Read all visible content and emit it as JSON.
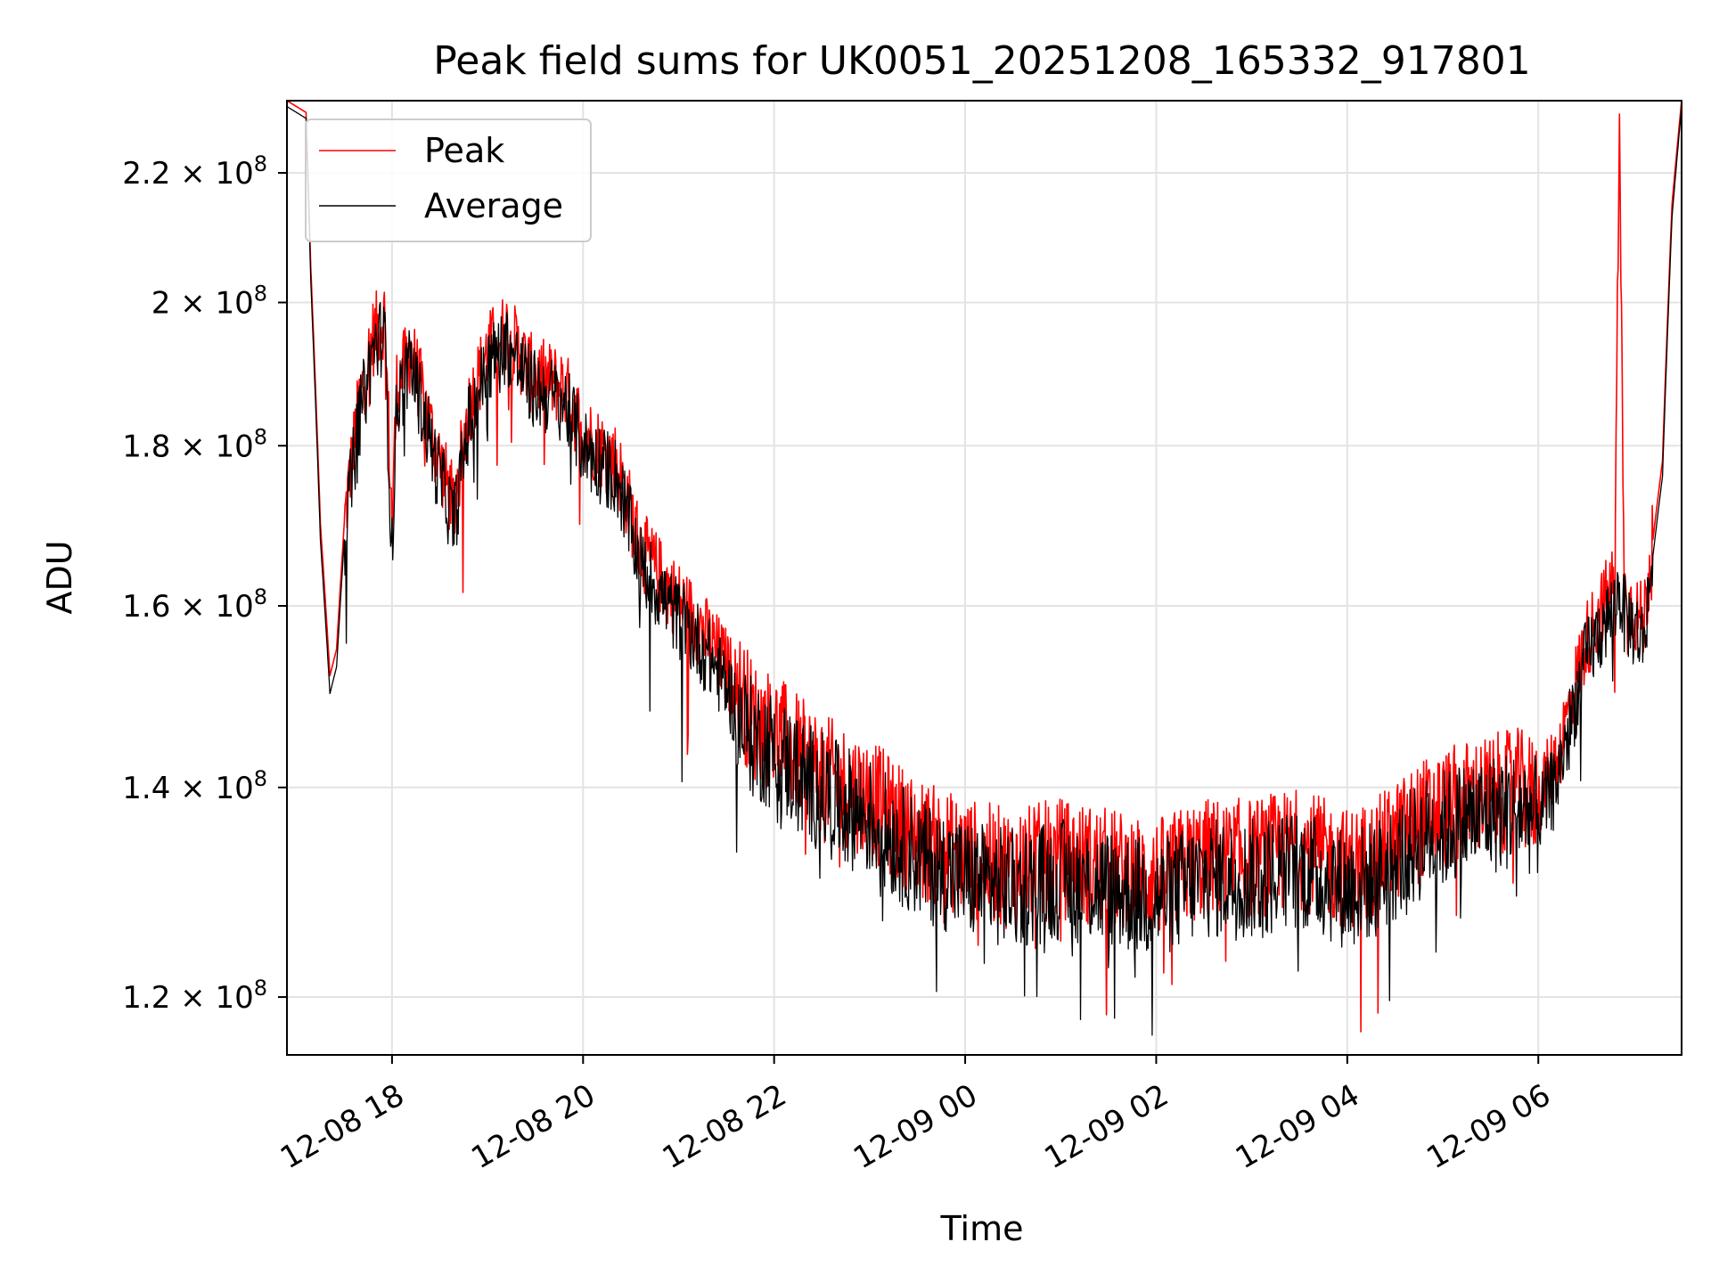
{
  "chart_data": {
    "type": "line",
    "title": "Peak field sums for UK0051_20251208_165332_917801",
    "xlabel": "Time",
    "ylabel": "ADU",
    "yscale": "log",
    "grid": true,
    "legend_position": "upper-left",
    "xlim": [
      16.9,
      31.5
    ],
    "ylim": [
      115000000,
      232000000
    ],
    "x_ticks": [
      {
        "value": 18,
        "label": "12-08 18"
      },
      {
        "value": 20,
        "label": "12-08 20"
      },
      {
        "value": 22,
        "label": "12-08 22"
      },
      {
        "value": 24,
        "label": "12-09 00"
      },
      {
        "value": 26,
        "label": "12-09 02"
      },
      {
        "value": 28,
        "label": "12-09 04"
      },
      {
        "value": 30,
        "label": "12-09 06"
      }
    ],
    "y_ticks": [
      {
        "value": 120000000,
        "mantissa": "1.2"
      },
      {
        "value": 140000000,
        "mantissa": "1.4"
      },
      {
        "value": 160000000,
        "mantissa": "1.6"
      },
      {
        "value": 180000000,
        "mantissa": "1.8"
      },
      {
        "value": 200000000,
        "mantissa": "2"
      },
      {
        "value": 220000000,
        "mantissa": "2.2"
      }
    ],
    "y_tick_suffix": "× 10",
    "y_tick_exponent": "8",
    "series": [
      {
        "name": "Peak",
        "color": "#ff0000",
        "x": [
          16.9,
          17.1,
          17.15,
          17.25,
          17.35,
          17.42,
          17.5,
          17.65,
          17.8,
          17.92,
          18.0,
          18.05,
          18.2,
          18.45,
          18.65,
          18.8,
          19.0,
          19.2,
          19.45,
          19.6,
          19.8,
          20.0,
          20.15,
          20.35,
          20.6,
          20.9,
          21.2,
          21.5,
          21.65,
          21.8,
          22.0,
          22.3,
          22.6,
          23.0,
          23.5,
          24.0,
          24.5,
          25.0,
          25.5,
          26.0,
          26.5,
          27.0,
          27.5,
          28.0,
          28.3,
          28.8,
          29.3,
          29.8,
          30.0,
          30.2,
          30.5,
          30.8,
          30.85,
          30.9,
          31.1,
          31.3,
          31.4,
          31.5
        ],
        "y": [
          232000000,
          230000000,
          205000000,
          170000000,
          152000000,
          155000000,
          170000000,
          185000000,
          195000000,
          198000000,
          170000000,
          188000000,
          193000000,
          180000000,
          172000000,
          185000000,
          193000000,
          196000000,
          190000000,
          189000000,
          188000000,
          182000000,
          180000000,
          178000000,
          167000000,
          162000000,
          158000000,
          153000000,
          150000000,
          147000000,
          146000000,
          143000000,
          141000000,
          139000000,
          135000000,
          133000000,
          132000000,
          133000000,
          132000000,
          131000000,
          133000000,
          133000000,
          134000000,
          132000000,
          133000000,
          137000000,
          139000000,
          140000000,
          139000000,
          143000000,
          156000000,
          163000000,
          225000000,
          161000000,
          158000000,
          178000000,
          215000000,
          232000000
        ]
      },
      {
        "name": "Average",
        "color": "#000000",
        "x": [
          16.9,
          17.1,
          17.15,
          17.25,
          17.35,
          17.42,
          17.5,
          17.65,
          17.8,
          17.92,
          18.0,
          18.05,
          18.2,
          18.45,
          18.65,
          18.8,
          19.0,
          19.2,
          19.45,
          19.6,
          19.8,
          20.0,
          20.15,
          20.35,
          20.6,
          20.9,
          21.2,
          21.5,
          21.65,
          21.8,
          22.0,
          22.3,
          22.6,
          23.0,
          23.5,
          24.0,
          24.5,
          25.0,
          25.5,
          26.0,
          26.5,
          27.0,
          27.5,
          28.0,
          28.3,
          28.8,
          29.3,
          29.8,
          30.0,
          30.2,
          30.5,
          30.8,
          30.85,
          30.9,
          31.1,
          31.3,
          31.4,
          31.5
        ],
        "y": [
          231000000,
          229000000,
          203000000,
          168000000,
          150000000,
          153000000,
          168000000,
          183000000,
          193000000,
          196000000,
          166000000,
          186000000,
          191000000,
          178000000,
          170000000,
          183000000,
          191000000,
          194000000,
          188000000,
          187000000,
          186000000,
          180000000,
          178000000,
          176000000,
          165000000,
          160000000,
          156000000,
          151000000,
          147000000,
          145000000,
          144000000,
          141000000,
          139000000,
          137000000,
          133000000,
          131000000,
          130000000,
          131000000,
          130000000,
          129000000,
          131000000,
          131000000,
          132000000,
          130000000,
          131000000,
          135000000,
          137000000,
          138000000,
          137000000,
          141000000,
          154000000,
          160000000,
          162000000,
          159000000,
          156000000,
          176000000,
          213000000,
          231000000
        ]
      }
    ]
  }
}
